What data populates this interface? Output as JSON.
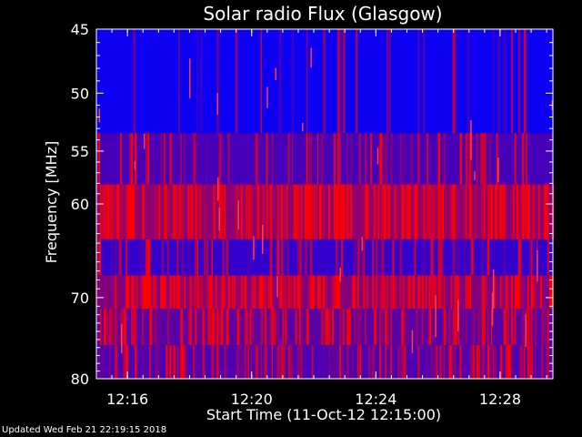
{
  "chart_data": {
    "type": "heatmap",
    "title": "Solar radio Flux (Glasgow)",
    "xlabel": "Start Time (11-Oct-12 12:15:00)",
    "ylabel": "Frequency [MHz]",
    "x_ticks": [
      "12:16",
      "12:20",
      "12:24",
      "12:28"
    ],
    "x_tick_minutes": [
      1,
      5,
      9,
      13
    ],
    "xlim_minutes": [
      0,
      14.7
    ],
    "y_ticks": [
      "45",
      "50",
      "55",
      "60",
      "70",
      "80"
    ],
    "y_tick_values": [
      45,
      50,
      55,
      60,
      70,
      80
    ],
    "ylim": [
      45,
      80
    ],
    "y_scale": "log",
    "colormap": {
      "low": "#0000ff",
      "high": "#ff0000"
    },
    "bands": [
      {
        "from": 45,
        "to": 53.4,
        "intensity": 0.05,
        "speckle": 0.15
      },
      {
        "from": 53.4,
        "to": 58.1,
        "intensity": 0.28,
        "speckle": 0.35
      },
      {
        "from": 58.1,
        "to": 63.6,
        "intensity": 0.55,
        "speckle": 0.6
      },
      {
        "from": 63.6,
        "to": 67.5,
        "intensity": 0.2,
        "speckle": 0.3
      },
      {
        "from": 67.5,
        "to": 71.3,
        "intensity": 0.5,
        "speckle": 0.6
      },
      {
        "from": 71.3,
        "to": 75.7,
        "intensity": 0.35,
        "speckle": 0.45
      },
      {
        "from": 75.7,
        "to": 80,
        "intensity": 0.3,
        "speckle": 0.5
      }
    ]
  },
  "footer": "Updated Wed Feb 21 22:19:15 2018"
}
